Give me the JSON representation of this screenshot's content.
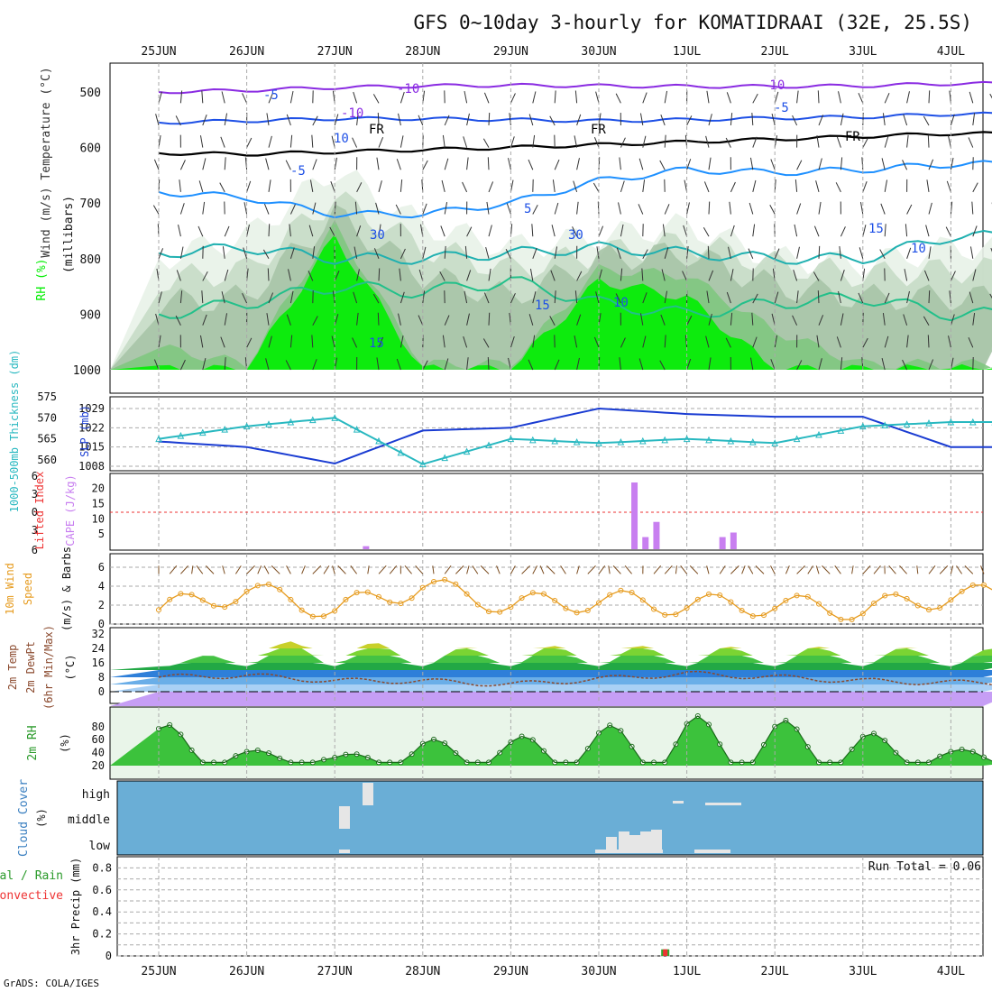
{
  "title": "GFS 0~10day 3-hourly for KOMATIDRAAI (32E, 25.5S)",
  "footer": "GrADS: COLA/IGES",
  "dates": [
    "25JUN",
    "26JUN",
    "27JUN",
    "28JUN",
    "29JUN",
    "30JUN",
    "1JUL",
    "2JUL",
    "3JUL",
    "4JUL"
  ],
  "colors": {
    "rh_green": "#00ee00",
    "cold_contour": "#8a2be2",
    "mid_contour": "#1e50e6",
    "warm_contour": "#20b2aa",
    "hot_contour": "#e69b1e",
    "slp": "#1a3cd2",
    "thickness": "#28b8c0",
    "cape": "#c87ff0",
    "wind10m": "#e69b1e",
    "cloud": "#6aaed6"
  },
  "chart_data": [
    {
      "type": "heatmap",
      "panel": "upper-air",
      "ylabels": [
        "Wind (m/s)",
        "Temperature (°C)",
        "RH (%)",
        "(millibars)"
      ],
      "yticks": [
        500,
        600,
        700,
        800,
        900,
        1000
      ],
      "contour_labels": [
        "-10",
        "-10",
        "-5",
        "-5",
        "FR",
        "FR",
        "FR",
        "-5",
        "5",
        "15",
        "15",
        "30",
        "10",
        "30",
        "10",
        "15",
        "-10",
        "10"
      ],
      "freezing_level_mb": [
        610,
        612,
        608,
        604,
        600,
        595,
        590,
        585,
        580,
        575
      ],
      "isotherm_minus10_mb": [
        500,
        497,
        492,
        489,
        488,
        489,
        490,
        490,
        489,
        485
      ],
      "isotherm_minus5_mb": [
        555,
        552,
        548,
        548,
        550,
        552,
        550,
        547,
        545,
        540
      ]
    },
    {
      "type": "line",
      "panel": "slp-thickness",
      "ylabel_left": "1000-500mb Thickness (dm)",
      "ylabel_right": "SLP (mb)",
      "left_ticks": [
        560,
        565,
        570,
        575
      ],
      "right_ticks": [
        1008,
        1015,
        1022,
        1029
      ],
      "x": [
        "25JUN",
        "26JUN",
        "27JUN",
        "28JUN",
        "29JUN",
        "30JUN",
        "1JUL",
        "2JUL",
        "3JUL",
        "4JUL"
      ],
      "series": [
        {
          "name": "SLP (mb)",
          "axis": "right",
          "values": [
            1017,
            1015,
            1009,
            1021,
            1022,
            1029,
            1027,
            1026,
            1026,
            1015
          ]
        },
        {
          "name": "1000-500mb Thickness (dm)",
          "axis": "left",
          "values": [
            565,
            568,
            570,
            559,
            565,
            564,
            565,
            564,
            568,
            569
          ]
        }
      ]
    },
    {
      "type": "bar",
      "panel": "cape-li",
      "ylabel_left": "Lifted Index",
      "ylabel_right": "CAPE (J/kg)",
      "li_ticks": [
        6,
        3,
        0,
        3,
        6
      ],
      "cape_ticks": [
        5,
        10,
        15,
        20
      ],
      "x": [
        "27JUN 09Z",
        "30JUN 09Z",
        "30JUN 12Z",
        "30JUN 15Z",
        "1JUL 09Z",
        "1JUL 12Z"
      ],
      "values": [
        1,
        22,
        4,
        9,
        4,
        5.5
      ]
    },
    {
      "type": "line",
      "panel": "wind10m",
      "ylabel": "10m Wind Speed (m/s) & Barbs",
      "yticks": [
        0,
        2,
        4,
        6
      ],
      "x": [
        "25JUN",
        "26JUN",
        "27JUN",
        "28JUN",
        "29JUN",
        "30JUN",
        "1JUL",
        "2JUL",
        "3JUL",
        "4JUL"
      ],
      "series": [
        {
          "name": "10m Wind Speed",
          "values": [
            1.5,
            3.5,
            1.5,
            4.0,
            2.0,
            2.5,
            2.0,
            2.0,
            1.5,
            3.0
          ]
        }
      ]
    },
    {
      "type": "area",
      "panel": "temperature",
      "ylabel": "2m Temp 2m DewPt (6hr Min/Max) (°C)",
      "yticks": [
        0,
        8,
        16,
        24,
        32
      ],
      "x": [
        "25JUN",
        "26JUN",
        "27JUN",
        "28JUN",
        "29JUN",
        "30JUN",
        "1JUL",
        "2JUL",
        "3JUL",
        "4JUL"
      ],
      "series": [
        {
          "name": "2m Temp",
          "values": [
            14,
            26,
            30,
            24,
            25,
            26,
            25,
            25,
            25,
            24
          ]
        },
        {
          "name": "2m DewPt",
          "values": [
            8,
            9,
            6,
            6,
            4,
            7,
            10,
            8,
            6,
            5
          ]
        }
      ]
    },
    {
      "type": "area",
      "panel": "rh2m",
      "ylabel": "2m RH (%)",
      "yticks": [
        20,
        40,
        60,
        80
      ],
      "x": [
        "25JUN",
        "26JUN",
        "27JUN",
        "28JUN",
        "29JUN",
        "30JUN",
        "1JUL",
        "2JUL",
        "3JUL",
        "4JUL"
      ],
      "series": [
        {
          "name": "2m RH",
          "values": [
            88,
            45,
            34,
            60,
            63,
            80,
            97,
            92,
            73,
            45
          ]
        }
      ]
    },
    {
      "type": "bar",
      "panel": "cloud-cover",
      "ylabel": "Cloud Cover (%)",
      "levels": [
        "high",
        "middle",
        "low"
      ]
    },
    {
      "type": "bar",
      "panel": "precip",
      "ylabel": "3hr Precip (mm)",
      "legend": [
        "Total / Rain",
        "Convective"
      ],
      "yticks": [
        0,
        0.2,
        0.4,
        0.6,
        0.8
      ],
      "run_total": "Run Total = 0.06",
      "x": [
        "30JUN 18Z"
      ],
      "values": [
        0.06
      ]
    }
  ]
}
